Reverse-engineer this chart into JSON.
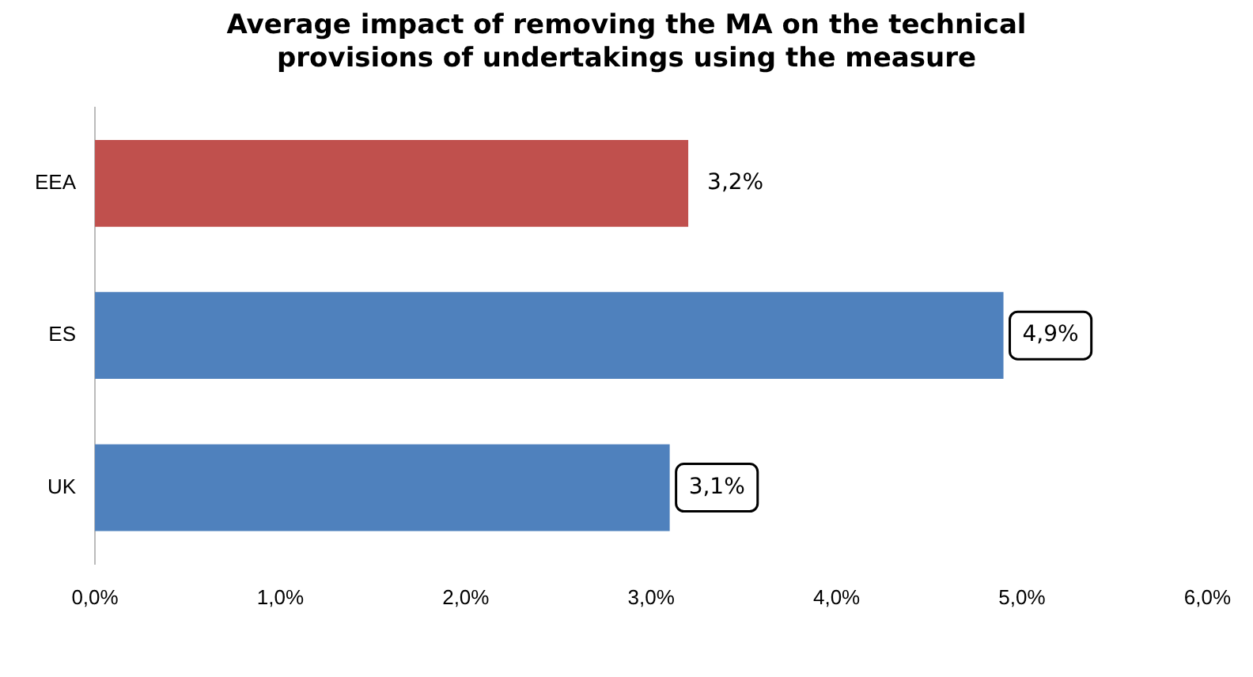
{
  "chart_data": {
    "type": "bar",
    "orientation": "horizontal",
    "title": "Average impact of removing the MA on the technical provisions of undertakings using the measure",
    "categories": [
      "EEA",
      "ES",
      "UK"
    ],
    "values": [
      3.2,
      4.9,
      3.1
    ],
    "colors": [
      "#c0504d",
      "#4f81bd",
      "#4f81bd"
    ],
    "value_labels": [
      "3,2%",
      "4,9%",
      "3,1%"
    ],
    "xlim": [
      0,
      6
    ],
    "xticks": [
      {
        "value": 0,
        "label": "0,0%"
      },
      {
        "value": 1,
        "label": "1,0%"
      },
      {
        "value": 2,
        "label": "2,0%"
      },
      {
        "value": 3,
        "label": "3,0%"
      },
      {
        "value": 4,
        "label": "4,0%"
      },
      {
        "value": 5,
        "label": "5,0%"
      },
      {
        "value": 6,
        "label": "6,0%"
      }
    ],
    "grid": false,
    "legend": false
  }
}
